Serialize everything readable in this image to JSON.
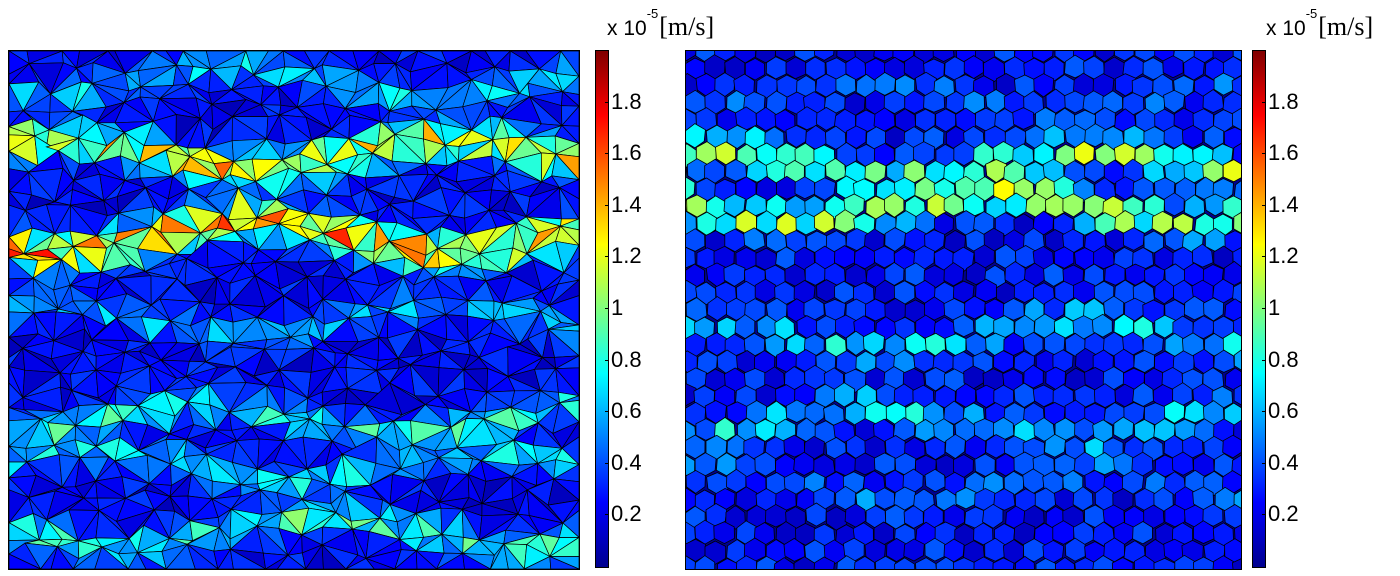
{
  "chart_data": [
    {
      "type": "heatmap",
      "mesh": "triangular",
      "colormap": "jet",
      "clim": [
        0,
        2
      ],
      "colorbar": {
        "position": "right",
        "ticks": [
          "1.8",
          "1.6",
          "1.4",
          "1.2",
          "1",
          "0.8",
          "0.6",
          "0.4",
          "0.2"
        ],
        "tick_values": [
          1.8,
          1.6,
          1.4,
          1.2,
          1.0,
          0.8,
          0.6,
          0.4,
          0.2
        ],
        "scale_label": "x 10",
        "scale_exponent": "-5",
        "unit": "[m/s]"
      },
      "bands": [
        {
          "y": 0.06,
          "level": 0.7
        },
        {
          "y": 0.2,
          "level": 1.35
        },
        {
          "y": 0.36,
          "level": 1.55
        },
        {
          "y": 0.52,
          "level": 0.65
        },
        {
          "y": 0.71,
          "level": 0.85
        },
        {
          "y": 0.8,
          "level": 0.75
        },
        {
          "y": 0.93,
          "level": 0.9
        }
      ],
      "background_level": 0.3
    },
    {
      "type": "heatmap",
      "mesh": "polygonal",
      "colormap": "jet",
      "clim": [
        0,
        2
      ],
      "colorbar": {
        "position": "right",
        "ticks": [
          "1.8",
          "1.6",
          "1.4",
          "1.2",
          "1",
          "0.8",
          "0.6",
          "0.4",
          "0.2"
        ],
        "tick_values": [
          1.8,
          1.6,
          1.4,
          1.2,
          1.0,
          0.8,
          0.6,
          0.4,
          0.2
        ],
        "scale_label": "x 10",
        "scale_exponent": "-5",
        "unit": "[m/s]"
      },
      "bands": [
        {
          "y": 0.09,
          "level": 0.5
        },
        {
          "y": 0.22,
          "level": 1.1
        },
        {
          "y": 0.3,
          "level": 1.2
        },
        {
          "y": 0.55,
          "level": 0.75
        },
        {
          "y": 0.72,
          "level": 0.8
        },
        {
          "y": 0.84,
          "level": 0.55
        }
      ],
      "background_level": 0.35
    }
  ]
}
